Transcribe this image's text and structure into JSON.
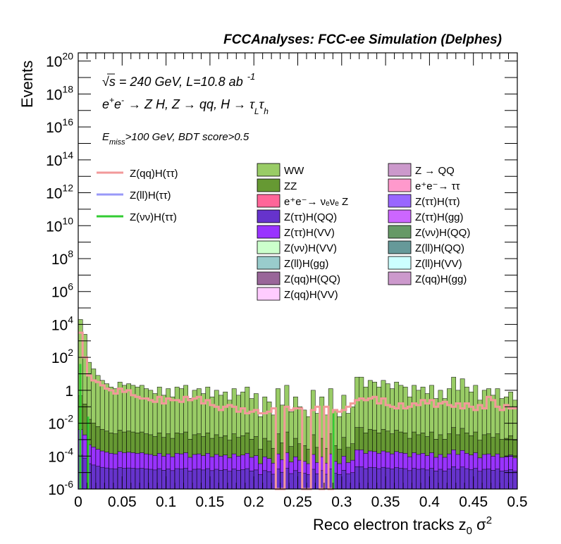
{
  "chart_data": {
    "type": "histogram",
    "title": "FCCAnalyses: FCC-ee Simulation (Delphes)",
    "xlabel": "Reco electron tracks z",
    "xlabel_sub": "0",
    "xlabel_suffix": " σ",
    "xlabel_sup": "2",
    "ylabel": "Events",
    "xlim": [
      0,
      0.5
    ],
    "ylim_log10": [
      -6,
      20.5
    ],
    "y_scale": "log",
    "grid": false,
    "x_ticks": [
      "0",
      "0.05",
      "0.1",
      "0.15",
      "0.2",
      "0.25",
      "0.3",
      "0.35",
      "0.4",
      "0.45",
      "0.5"
    ],
    "y_tick_exponents": [
      "-6",
      "-4",
      "-2",
      "2",
      "4",
      "6",
      "8",
      "10",
      "12",
      "14",
      "16",
      "18",
      "20"
    ],
    "y_tick_one": "1",
    "y_tick_base": "10",
    "annotations": {
      "line1_sqrt": "√",
      "line1_s": "s = 240 GeV, L=10.8 ab",
      "line1_sup": "-1",
      "line2_pre": "e",
      "line2_mid": "e",
      "line2_rest": "→ Z H, Z → qq, H → τ",
      "line2_sub1": "L",
      "line2_tau": "τ",
      "line2_sub2": "h",
      "line3_E": "E",
      "line3_sub": "miss",
      "line3_rest": ">100 GeV, BDT score>0.5",
      "plus": "+",
      "minus": "-"
    },
    "signal_series": [
      {
        "name": "Z(qq)H(ττ)",
        "color": "#f2999a"
      },
      {
        "name": "Z(ll)H(ττ)",
        "color": "#9999f8"
      },
      {
        "name": "Z(νν)H(ττ)",
        "color": "#33cc33"
      }
    ],
    "background_series": [
      {
        "name": "WW",
        "color": "#99cc66"
      },
      {
        "name": "Z → QQ",
        "color": "#cc99cc"
      },
      {
        "name": "ZZ",
        "color": "#669933"
      },
      {
        "name": "e⁺e⁻→ ττ",
        "color": "#ff99cc"
      },
      {
        "name": "e⁺e⁻→ νₑνₑ Z",
        "color": "#ff6699"
      },
      {
        "name": "Z(ττ)H(ττ)",
        "color": "#9966ff"
      },
      {
        "name": "Z(ττ)H(QQ)",
        "color": "#6633cc"
      },
      {
        "name": "Z(ττ)H(gg)",
        "color": "#cc66ff"
      },
      {
        "name": "Z(ττ)H(VV)",
        "color": "#9933ff"
      },
      {
        "name": "Z(νν)H(QQ)",
        "color": "#669966"
      },
      {
        "name": "Z(νν)H(VV)",
        "color": "#ccffcc"
      },
      {
        "name": "Z(ll)H(QQ)",
        "color": "#669999"
      },
      {
        "name": "Z(ll)H(gg)",
        "color": "#99cccc"
      },
      {
        "name": "Z(ll)H(VV)",
        "color": "#ccffff"
      },
      {
        "name": "Z(qq)H(QQ)",
        "color": "#996699"
      },
      {
        "name": "Z(qq)H(gg)",
        "color": "#cc99cc"
      },
      {
        "name": "Z(qq)H(VV)",
        "color": "#ffccff"
      }
    ],
    "bins": 100,
    "stack_total_log10": [
      4.3,
      3.4,
      1.7,
      1.3,
      0.9,
      0.6,
      0.4,
      0.2,
      0.1,
      0.5,
      0.3,
      0.4,
      0.3,
      0.2,
      0.3,
      0.1,
      0.0,
      -0.2,
      0.2,
      -0.3,
      0.1,
      -0.4,
      0.2,
      0.1,
      0.3,
      -0.5,
      0.0,
      0.1,
      -0.2,
      0.2,
      -0.4,
      0.0,
      -0.3,
      -0.1,
      -0.6,
      0.1,
      -0.3,
      -0.1,
      0.2,
      -0.5,
      -0.2,
      -1.6,
      -0.4,
      -0.7,
      -1.5,
      0.1,
      -0.9,
      0.3,
      -1.3,
      -0.4,
      -1.0,
      -1.2,
      -1.6,
      0.0,
      -1.4,
      -0.4,
      -1.5,
      0.1,
      -1.2,
      -1.6,
      -0.3,
      -1.4,
      -1.0,
      0.8,
      0.8,
      0.2,
      0.6,
      0.5,
      0.2,
      0.6,
      0.4,
      0.1,
      0.5,
      0.3,
      0.2,
      -0.4,
      0.3,
      0.0,
      0.2,
      -0.2,
      0.3,
      -0.5,
      0.0,
      -0.5,
      0.1,
      0.8,
      0.0,
      0.7,
      0.2,
      -0.1,
      0.3,
      -0.6,
      0.0,
      0.1,
      -0.3,
      0.1,
      -0.5,
      -0.4,
      -0.1,
      -0.6
    ],
    "signal_qqH_log10": [
      3.5,
      2.0,
      0.9,
      0.6,
      0.5,
      0.3,
      0.1,
      0.0,
      -0.2,
      0.1,
      -0.1,
      0.0,
      -0.3,
      -0.4,
      -0.5,
      -0.5,
      -0.6,
      -0.7,
      -0.4,
      -0.8,
      -0.5,
      -0.6,
      -0.6,
      -0.7,
      -0.4,
      -0.6,
      -0.5,
      -0.4,
      -0.8,
      -0.6,
      -0.9,
      -1.0,
      -1.2,
      -1.0,
      -0.9,
      -1.0,
      -1.3,
      -1.1,
      -1.4,
      -1.3,
      -1.2,
      -1.4,
      -1.4,
      -1.3,
      -1.1,
      -6.2,
      -6.2,
      -1.0,
      -1.2,
      -1.1,
      -1.1,
      -6.2,
      -6.2,
      -1.2,
      -1.0,
      -6.2,
      -1.0,
      -6.2,
      -1.2,
      -1.3,
      -1.2,
      -1.0,
      -0.8,
      -0.6,
      -0.5,
      -0.6,
      -0.5,
      -0.4,
      -0.8,
      -0.5,
      -0.9,
      -1.0,
      -1.1,
      -0.8,
      -1.1,
      -1.0,
      -0.8,
      -0.9,
      -0.6,
      -0.8,
      -0.6,
      -1.0,
      -0.8,
      -0.7,
      -0.9,
      -1.0,
      -0.8,
      -1.1,
      -0.8,
      -1.0,
      -1.2,
      -0.9,
      -1.1,
      -0.4,
      -0.6,
      -1.0,
      -1.2,
      -0.9,
      -1.1,
      -1.1
    ]
  }
}
